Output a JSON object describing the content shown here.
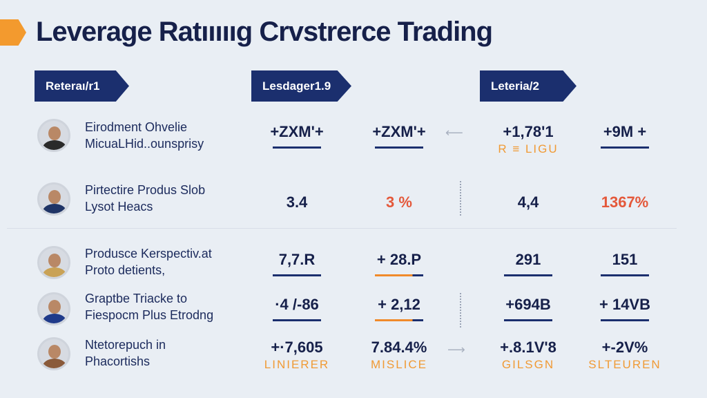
{
  "title": "Leverage Ratıııııg Crvstrerce Trading",
  "tags": [
    "Reteraı/r1",
    "Lesdager1.9",
    "Leteria/2"
  ],
  "rows": [
    {
      "name": [
        "Eirodment Ohvelie",
        "MicuaLHid..ounsprisy"
      ],
      "cells": [
        {
          "v": "+ZXM'+",
          "ul": "navy"
        },
        {
          "v": "+ZXM'+",
          "ul": "navy"
        },
        {
          "v": "+1,78'1",
          "sub": "R ≡ LIGU"
        },
        {
          "v": "+9M +",
          "ul": "navy"
        }
      ]
    },
    {
      "name": [
        "Pirtectire Produs Slob",
        "Lysot Heacs"
      ],
      "cells": [
        {
          "v": "3.4"
        },
        {
          "v": "3 %",
          "red": true
        },
        {
          "v": "4,4"
        },
        {
          "v": "1367%",
          "red": true
        }
      ]
    },
    {
      "name": [
        "Produsce Kerspectiv.at",
        "Proto detients,"
      ],
      "cells": [
        {
          "v": "7,7.R",
          "ul": "navy"
        },
        {
          "v": "+ 28.P",
          "ul": "mix"
        },
        {
          "v": "291",
          "ul": "navy"
        },
        {
          "v": "151",
          "ul": "navy"
        }
      ]
    },
    {
      "name": [
        "Graptbe Triacke to",
        "Fiespocm Plus Etrodng"
      ],
      "cells": [
        {
          "v": "·4 /-86",
          "ul": "navy"
        },
        {
          "v": "+ 2,12",
          "ul": "mix"
        },
        {
          "v": "+694B",
          "ul": "navy"
        },
        {
          "v": "+ 14VB",
          "ul": "navy"
        }
      ]
    },
    {
      "name": [
        "Ntetorepuch in",
        "Phacortishs"
      ],
      "cells": [
        {
          "v": "+·7,605",
          "sub": "LINIERER"
        },
        {
          "v": "7.84.4%",
          "sub": "MISLICE"
        },
        {
          "v": "+.8.1V'8",
          "sub": "GILSGN"
        },
        {
          "v": "+-2V%",
          "sub": "SLTEUREN"
        }
      ]
    }
  ],
  "colors": {
    "navy": "#1b2f6e",
    "orange": "#f09a35",
    "red": "#e4583a"
  }
}
